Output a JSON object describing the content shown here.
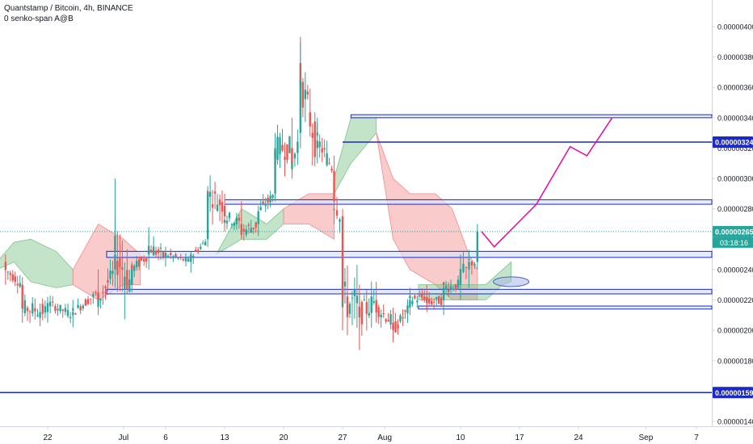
{
  "legend": {
    "title": "Quantstamp / Bitcoin, 4h, BINANCE",
    "indicator": "0 senko-span A@B"
  },
  "colors": {
    "up": "#26a69a",
    "down": "#ef5350",
    "cloud_bull": "#7cc48a",
    "cloud_bear": "#f28b8b",
    "level_line": "#1b29c7",
    "zone_fill": "#dbe3f7",
    "projection": "#e40c9e",
    "price_line": "#26a69a",
    "axis_text": "#131722",
    "grid_border": "#d1d4dc"
  },
  "chart_data": {
    "type": "candlestick",
    "symbol": "Quantstamp / Bitcoin",
    "timeframe": "4h",
    "exchange": "BINANCE",
    "indicator": "0 senko-span A@B",
    "ylim": [
      1.3e-06,
      4.1e-06
    ],
    "y_ticks": [
      "0.00000140",
      "0.00000160",
      "0.00000180",
      "0.00000200",
      "0.00000220",
      "0.00000240",
      "0.00000260",
      "0.00000280",
      "0.00000300",
      "0.00000320",
      "0.00000340",
      "0.00000360",
      "0.00000380",
      "0.00000400"
    ],
    "x_ticks": [
      "22",
      "Jul",
      "6",
      "13",
      "20",
      "27",
      "Aug",
      "10",
      "17",
      "24",
      "Sep",
      "7"
    ],
    "current_price": {
      "label": "0.00000265",
      "value": 2.65e-06,
      "countdown": "03:18:16"
    },
    "highlighted_level": {
      "label": "0.00000324",
      "value": 3.24e-06
    },
    "support_level": {
      "label": "0.00000159",
      "value": 1.59e-06
    },
    "horizontal_zones": [
      {
        "from": "Jun 29",
        "to": "right",
        "low": 2.48e-06,
        "high": 2.52e-06
      },
      {
        "from": "Jun 29",
        "to": "right",
        "low": 2.24e-06,
        "high": 2.27e-06
      },
      {
        "from": "Aug 5",
        "to": "right",
        "low": 2.14e-06,
        "high": 2.16e-06
      },
      {
        "from": "Jul 13",
        "to": "right",
        "low": 2.83e-06,
        "high": 2.86e-06
      },
      {
        "from": "Jul 28",
        "to": "right",
        "low": 3.4e-06,
        "high": 3.42e-06
      }
    ],
    "projection_path": [
      {
        "date": "Aug 12.5",
        "price": 2.65e-06
      },
      {
        "date": "Aug 14",
        "price": 2.55e-06
      },
      {
        "date": "Aug 19",
        "price": 2.83e-06
      },
      {
        "date": "Aug 23",
        "price": 3.21e-06
      },
      {
        "date": "Aug 25",
        "price": 3.15e-06
      },
      {
        "date": "Aug 28",
        "price": 3.4e-06
      }
    ],
    "target_ellipse": {
      "date": "Aug 16",
      "price": 2.32e-06
    },
    "ohlc_sample": [
      {
        "date": "Jun 17",
        "o": 2.45e-06,
        "h": 2.5e-06,
        "l": 2.3e-06,
        "c": 2.4e-06
      },
      {
        "date": "Jun 19",
        "o": 2.3e-06,
        "h": 2.35e-06,
        "l": 2.05e-06,
        "c": 2.15e-06
      },
      {
        "date": "Jun 22",
        "o": 2.12e-06,
        "h": 2.22e-06,
        "l": 2.05e-06,
        "c": 2.18e-06
      },
      {
        "date": "Jun 25",
        "o": 2.1e-06,
        "h": 2.2e-06,
        "l": 2.02e-06,
        "c": 2.12e-06
      },
      {
        "date": "Jun 28",
        "o": 2.25e-06,
        "h": 2.4e-06,
        "l": 2.1e-06,
        "c": 2.2e-06
      },
      {
        "date": "Jun 30",
        "o": 2.4e-06,
        "h": 3e-06,
        "l": 2.28e-06,
        "c": 2.5e-06
      },
      {
        "date": "Jul 2",
        "o": 2.3e-06,
        "h": 2.45e-06,
        "l": 2.25e-06,
        "c": 2.4e-06
      },
      {
        "date": "Jul 4",
        "o": 2.5e-06,
        "h": 2.68e-06,
        "l": 2.4e-06,
        "c": 2.55e-06
      },
      {
        "date": "Jul 6",
        "o": 2.48e-06,
        "h": 2.55e-06,
        "l": 2.42e-06,
        "c": 2.5e-06
      },
      {
        "date": "Jul 9",
        "o": 2.45e-06,
        "h": 2.52e-06,
        "l": 2.38e-06,
        "c": 2.48e-06
      },
      {
        "date": "Jul 11",
        "o": 2.6e-06,
        "h": 2.95e-06,
        "l": 2.55e-06,
        "c": 2.9e-06
      },
      {
        "date": "Jul 13",
        "o": 2.82e-06,
        "h": 2.9e-06,
        "l": 2.65e-06,
        "c": 2.75e-06
      },
      {
        "date": "Jul 15",
        "o": 2.7e-06,
        "h": 2.85e-06,
        "l": 2.6e-06,
        "c": 2.65e-06
      },
      {
        "date": "Jul 17",
        "o": 2.7e-06,
        "h": 2.82e-06,
        "l": 2.62e-06,
        "c": 2.78e-06
      },
      {
        "date": "Jul 19",
        "o": 2.9e-06,
        "h": 3.3e-06,
        "l": 2.85e-06,
        "c": 3.2e-06
      },
      {
        "date": "Jul 21",
        "o": 3.2e-06,
        "h": 3.4e-06,
        "l": 3e-06,
        "c": 3.1e-06
      },
      {
        "date": "Jul 22",
        "o": 3.3e-06,
        "h": 3.9e-06,
        "l": 3.2e-06,
        "c": 3.65e-06
      },
      {
        "date": "Jul 24",
        "o": 3.2e-06,
        "h": 3.4e-06,
        "l": 3.1e-06,
        "c": 3.25e-06
      },
      {
        "date": "Jul 26",
        "o": 3.05e-06,
        "h": 3.15e-06,
        "l": 2.7e-06,
        "c": 2.85e-06
      },
      {
        "date": "Jul 27",
        "o": 2.75e-06,
        "h": 2.8e-06,
        "l": 2e-06,
        "c": 2.2e-06
      },
      {
        "date": "Jul 29",
        "o": 2.15e-06,
        "h": 2.3e-06,
        "l": 1.87e-06,
        "c": 2.1e-06
      },
      {
        "date": "Jul 31",
        "o": 2.2e-06,
        "h": 2.32e-06,
        "l": 2.05e-06,
        "c": 2.15e-06
      },
      {
        "date": "Aug 2",
        "o": 2.05e-06,
        "h": 2.15e-06,
        "l": 1.92e-06,
        "c": 2e-06
      },
      {
        "date": "Aug 4",
        "o": 2.15e-06,
        "h": 2.28e-06,
        "l": 2.1e-06,
        "c": 2.2e-06
      },
      {
        "date": "Aug 6",
        "o": 2.22e-06,
        "h": 2.3e-06,
        "l": 2.12e-06,
        "c": 2.18e-06
      },
      {
        "date": "Aug 8",
        "o": 2.2e-06,
        "h": 2.32e-06,
        "l": 2.1e-06,
        "c": 2.28e-06
      },
      {
        "date": "Aug 10",
        "o": 2.3e-06,
        "h": 2.5e-06,
        "l": 2.2e-06,
        "c": 2.38e-06
      },
      {
        "date": "Aug 11",
        "o": 2.4e-06,
        "h": 2.52e-06,
        "l": 2.28e-06,
        "c": 2.45e-06
      },
      {
        "date": "Aug 12",
        "o": 2.45e-06,
        "h": 2.7e-06,
        "l": 2.4e-06,
        "c": 2.65e-06
      }
    ]
  }
}
